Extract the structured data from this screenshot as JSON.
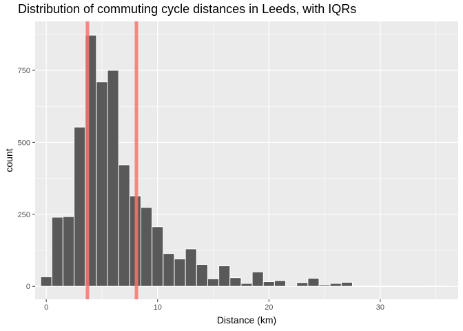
{
  "chart_data": {
    "type": "bar",
    "title": "Distribution of commuting cycle distances in Leeds, with IQRs",
    "xlabel": "Distance (km)",
    "ylabel": "count",
    "xlim": [
      -1,
      37
    ],
    "ylim": [
      -45,
      920
    ],
    "x_ticks": [
      0,
      10,
      20,
      30
    ],
    "x_tick_labels": [
      "0",
      "10",
      "20",
      "30"
    ],
    "y_ticks": [
      0,
      250,
      500,
      750
    ],
    "y_tick_labels": [
      "0",
      "250",
      "500",
      "750"
    ],
    "grid": true,
    "bin_width": 1,
    "bins": [
      {
        "x": 0,
        "count": 33
      },
      {
        "x": 1,
        "count": 240
      },
      {
        "x": 2,
        "count": 242
      },
      {
        "x": 3,
        "count": 553
      },
      {
        "x": 4,
        "count": 872
      },
      {
        "x": 5,
        "count": 710
      },
      {
        "x": 6,
        "count": 750
      },
      {
        "x": 7,
        "count": 422
      },
      {
        "x": 8,
        "count": 314
      },
      {
        "x": 9,
        "count": 274
      },
      {
        "x": 10,
        "count": 207
      },
      {
        "x": 11,
        "count": 114
      },
      {
        "x": 12,
        "count": 95
      },
      {
        "x": 13,
        "count": 130
      },
      {
        "x": 14,
        "count": 76
      },
      {
        "x": 15,
        "count": 26
      },
      {
        "x": 16,
        "count": 71
      },
      {
        "x": 17,
        "count": 30
      },
      {
        "x": 18,
        "count": 10
      },
      {
        "x": 19,
        "count": 50
      },
      {
        "x": 20,
        "count": 16
      },
      {
        "x": 21,
        "count": 20
      },
      {
        "x": 22,
        "count": 3
      },
      {
        "x": 23,
        "count": 13
      },
      {
        "x": 24,
        "count": 28
      },
      {
        "x": 25,
        "count": 5
      },
      {
        "x": 26,
        "count": 10
      },
      {
        "x": 27,
        "count": 14
      },
      {
        "x": 28,
        "count": 0
      },
      {
        "x": 29,
        "count": 1
      },
      {
        "x": 30,
        "count": 0
      },
      {
        "x": 31,
        "count": 1
      },
      {
        "x": 32,
        "count": 0
      },
      {
        "x": 33,
        "count": 0
      },
      {
        "x": 34,
        "count": 0
      },
      {
        "x": 35,
        "count": 1
      }
    ],
    "vlines": [
      3.7,
      8.1
    ],
    "colors": {
      "bar_fill": "#595959",
      "bar_outline": "#ffffff",
      "panel_bg": "#ebebeb",
      "grid": "#ffffff",
      "vline": "#f8766d"
    }
  }
}
